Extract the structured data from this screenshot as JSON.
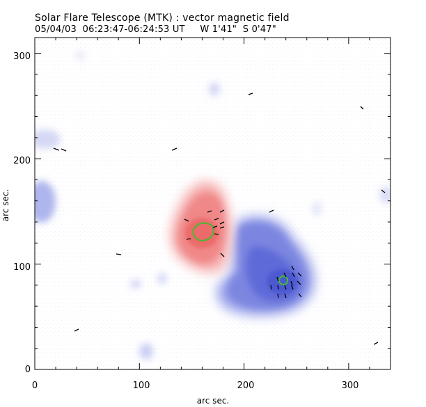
{
  "header": {
    "title": "Solar Flare Telescope (MTK) : vector magnetic field",
    "subtitle": "05/04/03  06:23:47-06:24:53 UT     W 1'41\"  S 0'47\""
  },
  "chart_data": {
    "type": "heatmap",
    "xlabel": "arc sec.",
    "ylabel": "arc sec.",
    "xlim": [
      0,
      340
    ],
    "ylim": [
      0,
      315
    ],
    "x_ticks": [
      "0",
      "100",
      "200",
      "300"
    ],
    "y_ticks": [
      "0",
      "100",
      "200",
      "300"
    ],
    "colors": {
      "positive_polarity": "#f07070",
      "negative_polarity": "#5a6ad8",
      "contour": "#44bb33",
      "vector": "#000000",
      "background": "#ffffff"
    }
  }
}
